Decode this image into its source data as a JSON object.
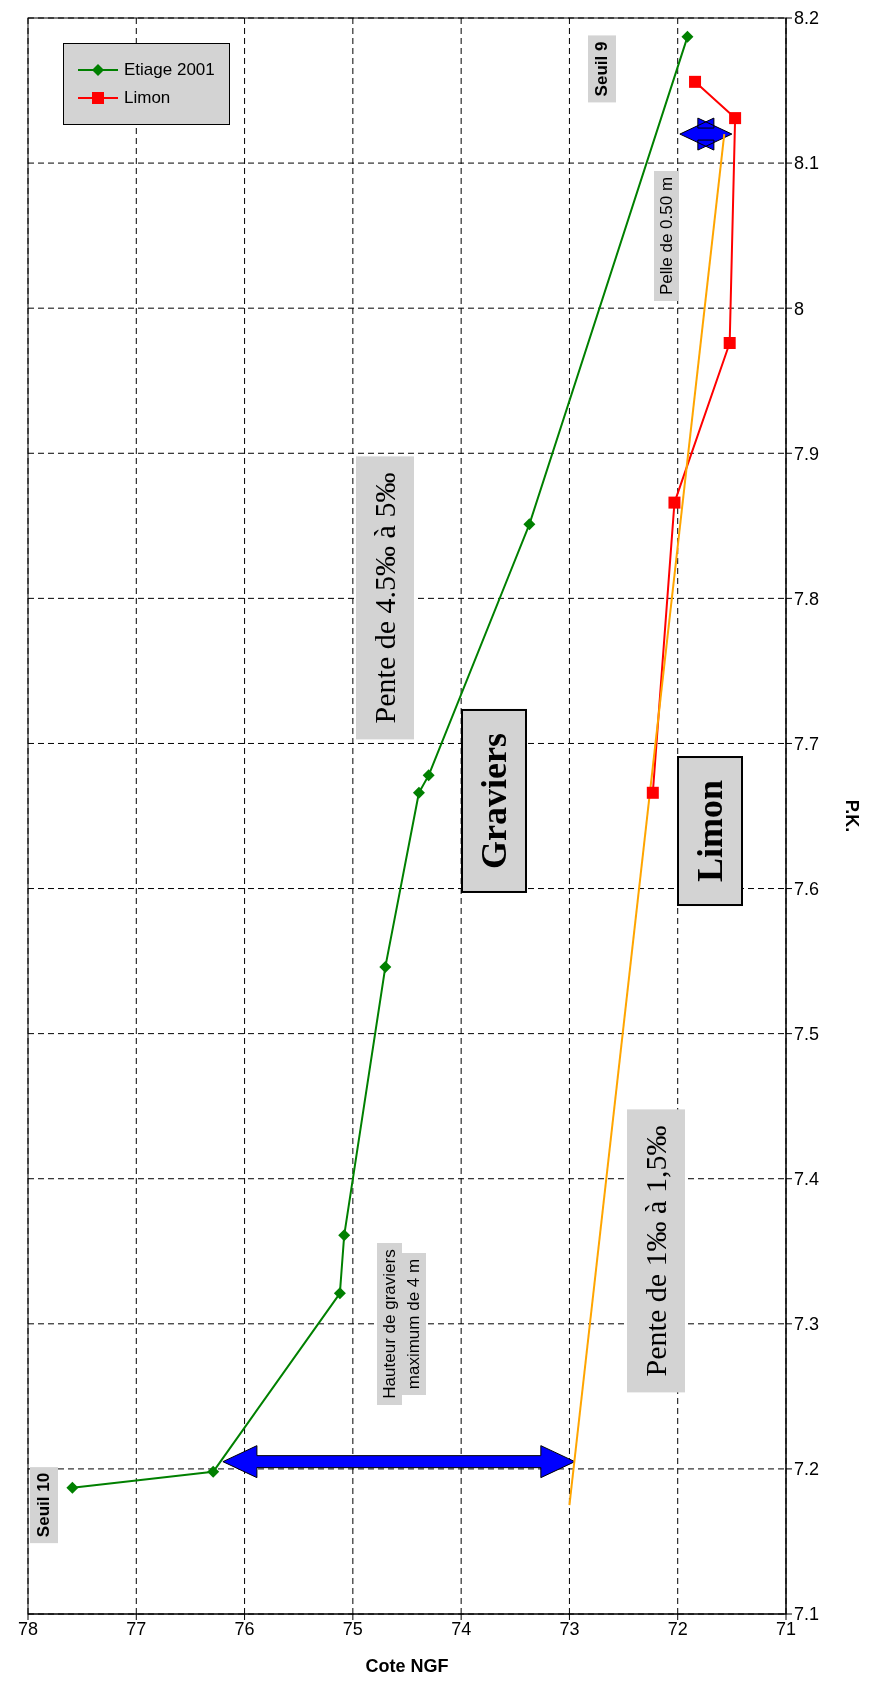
{
  "chart_data": {
    "type": "line",
    "xlabel": "Cote NGF",
    "ylabel": "P.K.",
    "xlim": [
      78,
      71
    ],
    "xticks": [
      71,
      72,
      73,
      74,
      75,
      76,
      77,
      78
    ],
    "ylim": [
      7.1,
      8.2
    ],
    "yticks": [
      7.1,
      7.2,
      7.3,
      7.4,
      7.5,
      7.6,
      7.7,
      7.8,
      7.9,
      8,
      8.1,
      8.2
    ],
    "grid": true,
    "legend": "top left",
    "line_style": "solid",
    "series": [
      {
        "name": "Etiage 2001",
        "color": "#008000",
        "marker": "diamond",
        "x": [
          77.59,
          76.29,
          75.12,
          75.08,
          74.7,
          74.39,
          74.3,
          73.37,
          71.91
        ],
        "values": [
          7.187,
          7.198,
          7.321,
          7.361,
          7.546,
          7.666,
          7.678,
          7.851,
          8.187
        ]
      },
      {
        "name": "Limon",
        "color": "#ff0000",
        "marker": "square",
        "x": [
          72.23,
          72.03,
          71.52,
          71.47,
          71.84
        ],
        "values": [
          7.666,
          7.866,
          7.976,
          8.131,
          8.156
        ]
      },
      {
        "color": "#ffa500",
        "marker": "none",
        "x": [
          73.0,
          71.57
        ],
        "values": [
          7.175,
          8.12
        ]
      }
    ],
    "annotations": [
      "Seuil 10",
      "Seuil 9",
      "Hauteur de graviers maximum de 4 m",
      "Pente de 4.5‰ à 5‰",
      "Graviers",
      "Limon",
      "Pente de 1‰ à 1,5‰",
      "Pelle de 0.50 m"
    ]
  }
}
